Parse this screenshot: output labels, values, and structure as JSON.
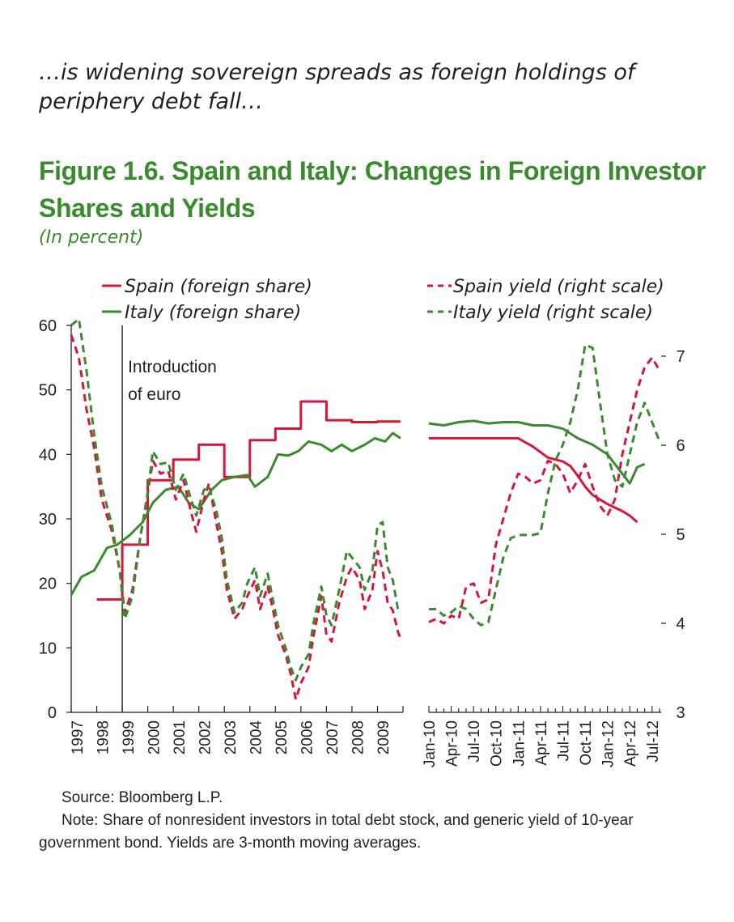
{
  "lead_text": "…is widening sovereign spreads as foreign holdings of periphery debt fall…",
  "figure_title": "Figure 1.6. Spain and Italy: Changes in Foreign Investor Shares and Yields",
  "units": "(In percent)",
  "source": "Source: Bloomberg L.P.",
  "note": "Note: Share of nonresident investors in total debt stock, and generic yield of 10-year government bond. Yields are 3-month moving averages.",
  "colors": {
    "spain": "#d6163b",
    "italy": "#3a8a2e",
    "axis": "#231f20"
  },
  "chart_data": {
    "type": "line",
    "legend_placement": "top",
    "grid": false,
    "annotation": {
      "text": [
        "Introduction",
        "of euro"
      ],
      "x": 1999.0
    },
    "left_panel": {
      "x_ticks": [
        "1997",
        "1998",
        "1999",
        "2000",
        "2001",
        "2002",
        "2003",
        "2004",
        "2005",
        "2006",
        "2007",
        "2008",
        "2009"
      ],
      "xlim": [
        1997.0,
        2010.0
      ],
      "ylim_left": [
        0,
        60
      ],
      "yticks_left": [
        0,
        10,
        20,
        30,
        40,
        50,
        60
      ],
      "yield_scale": [
        3,
        7
      ]
    },
    "right_panel": {
      "x_ticks": [
        "Jan-10",
        "Apr-10",
        "Jul-10",
        "Oct-10",
        "Jan-11",
        "Apr-11",
        "Jul-11",
        "Oct-11",
        "Jan-12",
        "Apr-12",
        "Jul-12"
      ],
      "xlim_months": [
        0,
        31
      ],
      "ylim_right": [
        3,
        7
      ],
      "yticks_right": [
        3,
        4,
        5,
        6,
        7
      ]
    },
    "series": [
      {
        "name": "Spain (foreign share)",
        "axis": "left",
        "style": "solid",
        "color": "#d6163b",
        "left": [
          [
            1998.0,
            17.5
          ],
          [
            1999.0,
            17.5
          ],
          [
            1999.0,
            26
          ],
          [
            2000.0,
            26
          ],
          [
            2000.0,
            36
          ],
          [
            2001.0,
            36
          ],
          [
            2001.0,
            39.2
          ],
          [
            2002.0,
            39.2
          ],
          [
            2002.0,
            41.5
          ],
          [
            2003.0,
            41.5
          ],
          [
            2003.0,
            36.5
          ],
          [
            2004.0,
            36.5
          ],
          [
            2004.0,
            42.2
          ],
          [
            2005.0,
            42.2
          ],
          [
            2005.0,
            44
          ],
          [
            2006.0,
            44
          ],
          [
            2006.0,
            48.2
          ],
          [
            2007.0,
            48.2
          ],
          [
            2007.0,
            45.3
          ],
          [
            2008.0,
            45.3
          ],
          [
            2008.0,
            45
          ],
          [
            2009.0,
            45
          ],
          [
            2009.0,
            45.1
          ],
          [
            2009.9,
            45.1
          ]
        ],
        "right": [
          [
            0,
            42.5
          ],
          [
            12,
            42.5
          ],
          [
            14,
            41.2
          ],
          [
            16,
            39.5
          ],
          [
            18,
            38.9
          ],
          [
            19,
            38.2
          ],
          [
            20,
            36.7
          ],
          [
            21,
            35
          ],
          [
            22,
            33.7
          ],
          [
            24,
            32.3
          ],
          [
            26,
            31.2
          ],
          [
            27,
            30.5
          ],
          [
            28,
            29.5
          ]
        ]
      },
      {
        "name": "Italy (foreign share)",
        "axis": "left",
        "style": "solid",
        "color": "#3a8a2e",
        "left": [
          [
            1997.0,
            18.2
          ],
          [
            1997.4,
            21
          ],
          [
            1997.9,
            22
          ],
          [
            1998.4,
            25.5
          ],
          [
            1998.8,
            26
          ],
          [
            1999.3,
            27.5
          ],
          [
            1999.8,
            29.5
          ],
          [
            2000.2,
            32.5
          ],
          [
            2000.7,
            34.5
          ],
          [
            2001.2,
            35
          ],
          [
            2001.6,
            32.5
          ],
          [
            2002.0,
            31.5
          ],
          [
            2002.5,
            34.5
          ],
          [
            2002.9,
            36
          ],
          [
            2003.4,
            36.5
          ],
          [
            2003.9,
            36.8
          ],
          [
            2004.2,
            35
          ],
          [
            2004.7,
            36.5
          ],
          [
            2005.1,
            40
          ],
          [
            2005.5,
            39.8
          ],
          [
            2005.9,
            40.5
          ],
          [
            2006.3,
            42
          ],
          [
            2006.8,
            41.5
          ],
          [
            2007.2,
            40.5
          ],
          [
            2007.6,
            41.5
          ],
          [
            2008.0,
            40.5
          ],
          [
            2008.5,
            41.5
          ],
          [
            2008.9,
            42.5
          ],
          [
            2009.3,
            42
          ],
          [
            2009.6,
            43.3
          ],
          [
            2009.9,
            42.5
          ]
        ],
        "right": [
          [
            0,
            44.8
          ],
          [
            2,
            44.5
          ],
          [
            4,
            45
          ],
          [
            6,
            45.2
          ],
          [
            8,
            44.8
          ],
          [
            10,
            45
          ],
          [
            12,
            45
          ],
          [
            14,
            44.5
          ],
          [
            16,
            44.5
          ],
          [
            18,
            44
          ],
          [
            20,
            42.5
          ],
          [
            22,
            41.5
          ],
          [
            24,
            40
          ],
          [
            26,
            37
          ],
          [
            27,
            35.5
          ],
          [
            28,
            38
          ],
          [
            29,
            38.5
          ]
        ]
      },
      {
        "name": "Spain yield (right scale)",
        "axis": "right",
        "style": "dashed",
        "color": "#d6163b",
        "left": [
          [
            1997.0,
            58.5
          ],
          [
            1997.3,
            55
          ],
          [
            1997.6,
            47
          ],
          [
            1997.9,
            41
          ],
          [
            1998.2,
            33
          ],
          [
            1998.6,
            28
          ],
          [
            1998.9,
            22
          ],
          [
            1999.1,
            15.5
          ],
          [
            1999.4,
            19
          ],
          [
            1999.7,
            27
          ],
          [
            2000.0,
            34
          ],
          [
            2000.2,
            39
          ],
          [
            2000.5,
            37
          ],
          [
            2000.8,
            37.5
          ],
          [
            2001.1,
            33
          ],
          [
            2001.4,
            36
          ],
          [
            2001.7,
            31
          ],
          [
            2001.9,
            28
          ],
          [
            2002.2,
            33
          ],
          [
            2002.4,
            35.5
          ],
          [
            2002.7,
            29
          ],
          [
            2002.9,
            25
          ],
          [
            2003.1,
            19
          ],
          [
            2003.4,
            14.5
          ],
          [
            2003.7,
            16
          ],
          [
            2003.9,
            18
          ],
          [
            2004.2,
            20.5
          ],
          [
            2004.4,
            16
          ],
          [
            2004.7,
            19.5
          ],
          [
            2004.9,
            16
          ],
          [
            2005.1,
            12
          ],
          [
            2005.4,
            9
          ],
          [
            2005.6,
            6
          ],
          [
            2005.8,
            2
          ],
          [
            2006.0,
            4.5
          ],
          [
            2006.3,
            7
          ],
          [
            2006.5,
            12
          ],
          [
            2006.8,
            18
          ],
          [
            2007.0,
            12
          ],
          [
            2007.2,
            11
          ],
          [
            2007.5,
            17
          ],
          [
            2007.8,
            21
          ],
          [
            2008.0,
            22.5
          ],
          [
            2008.3,
            20.5
          ],
          [
            2008.5,
            16
          ],
          [
            2008.8,
            19
          ],
          [
            2009.0,
            25
          ],
          [
            2009.2,
            22
          ],
          [
            2009.4,
            17
          ],
          [
            2009.6,
            15.8
          ],
          [
            2009.8,
            12.5
          ],
          [
            2009.9,
            11.5
          ]
        ],
        "right": [
          [
            0,
            14
          ],
          [
            1,
            14.5
          ],
          [
            2,
            13.8
          ],
          [
            3,
            15
          ],
          [
            4,
            14.5
          ],
          [
            5,
            19.5
          ],
          [
            6,
            20
          ],
          [
            7,
            17
          ],
          [
            8,
            17.5
          ],
          [
            9,
            26
          ],
          [
            10,
            30
          ],
          [
            11,
            34
          ],
          [
            12,
            37
          ],
          [
            13,
            36.5
          ],
          [
            14,
            35.5
          ],
          [
            15,
            36
          ],
          [
            16,
            39
          ],
          [
            17,
            38.5
          ],
          [
            18,
            37
          ],
          [
            19,
            34
          ],
          [
            20,
            36
          ],
          [
            21,
            38.5
          ],
          [
            22,
            35
          ],
          [
            23,
            32
          ],
          [
            24,
            30.5
          ],
          [
            25,
            33
          ],
          [
            26,
            40
          ],
          [
            27,
            45
          ],
          [
            28,
            50
          ],
          [
            29,
            53.5
          ],
          [
            30,
            55
          ],
          [
            31,
            53
          ]
        ]
      },
      {
        "name": "Italy yield (right scale)",
        "axis": "right",
        "style": "dashed",
        "color": "#3a8a2e",
        "left": [
          [
            1997.0,
            60
          ],
          [
            1997.3,
            61
          ],
          [
            1997.6,
            53
          ],
          [
            1997.9,
            43
          ],
          [
            1998.2,
            35
          ],
          [
            1998.6,
            29
          ],
          [
            1998.9,
            22
          ],
          [
            1999.1,
            14.5
          ],
          [
            1999.4,
            18
          ],
          [
            1999.7,
            27
          ],
          [
            2000.0,
            34
          ],
          [
            2000.2,
            40.5
          ],
          [
            2000.5,
            38.5
          ],
          [
            2000.8,
            38.8
          ],
          [
            2001.1,
            34.5
          ],
          [
            2001.4,
            37
          ],
          [
            2001.7,
            33
          ],
          [
            2001.9,
            30.5
          ],
          [
            2002.2,
            34.5
          ],
          [
            2002.4,
            35
          ],
          [
            2002.7,
            31
          ],
          [
            2002.9,
            27
          ],
          [
            2003.1,
            20.5
          ],
          [
            2003.4,
            15.5
          ],
          [
            2003.7,
            17
          ],
          [
            2003.9,
            20
          ],
          [
            2004.2,
            22.5
          ],
          [
            2004.4,
            18
          ],
          [
            2004.7,
            21.5
          ],
          [
            2004.9,
            17.5
          ],
          [
            2005.1,
            13.5
          ],
          [
            2005.4,
            10
          ],
          [
            2005.6,
            7
          ],
          [
            2005.8,
            5
          ],
          [
            2006.0,
            7
          ],
          [
            2006.3,
            9
          ],
          [
            2006.5,
            14
          ],
          [
            2006.8,
            19.5
          ],
          [
            2007.0,
            15
          ],
          [
            2007.2,
            13.5
          ],
          [
            2007.5,
            19
          ],
          [
            2007.8,
            25
          ],
          [
            2008.0,
            24
          ],
          [
            2008.3,
            22.5
          ],
          [
            2008.5,
            19
          ],
          [
            2008.8,
            22
          ],
          [
            2009.0,
            29
          ],
          [
            2009.2,
            29.5
          ],
          [
            2009.4,
            22.5
          ],
          [
            2009.6,
            20.5
          ],
          [
            2009.8,
            16
          ],
          [
            2009.9,
            16
          ]
        ],
        "right": [
          [
            0,
            16
          ],
          [
            1,
            16
          ],
          [
            2,
            15
          ],
          [
            3,
            15.5
          ],
          [
            4,
            16.5
          ],
          [
            5,
            16
          ],
          [
            6,
            14.5
          ],
          [
            7,
            13.5
          ],
          [
            8,
            14
          ],
          [
            9,
            19
          ],
          [
            10,
            24
          ],
          [
            11,
            27
          ],
          [
            12,
            27.5
          ],
          [
            13,
            27.5
          ],
          [
            14,
            27.5
          ],
          [
            15,
            27.8
          ],
          [
            16,
            34
          ],
          [
            17,
            39
          ],
          [
            18,
            41.5
          ],
          [
            19,
            45
          ],
          [
            20,
            50
          ],
          [
            21,
            57
          ],
          [
            22,
            56.5
          ],
          [
            23,
            48
          ],
          [
            24,
            40
          ],
          [
            25,
            36
          ],
          [
            26,
            35
          ],
          [
            27,
            40
          ],
          [
            28,
            45
          ],
          [
            29,
            48
          ],
          [
            30,
            45
          ],
          [
            31,
            42
          ]
        ]
      }
    ]
  }
}
